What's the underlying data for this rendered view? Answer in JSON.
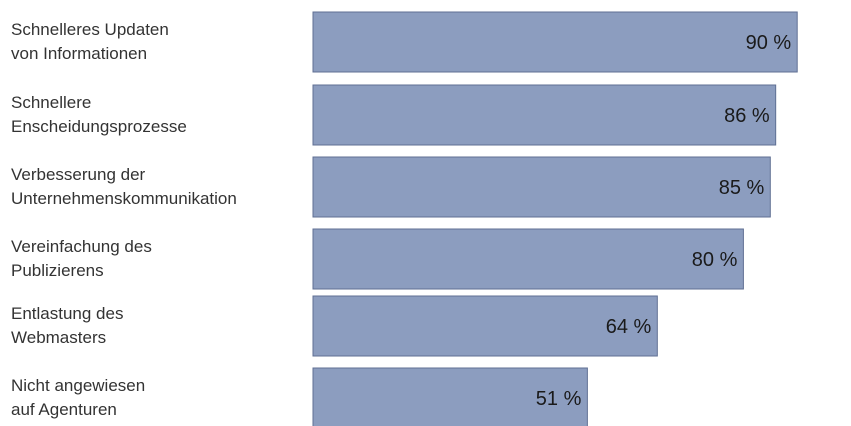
{
  "chart_data": {
    "type": "bar",
    "orientation": "horizontal",
    "categories": [
      [
        "Schnelleres Updaten",
        "von Informationen"
      ],
      [
        "Schnellere",
        "Enscheidungsprozesse"
      ],
      [
        "Verbesserung der",
        "Unternehmenskommunikation"
      ],
      [
        "Vereinfachung des",
        "Publizierens"
      ],
      [
        "Entlastung des",
        "Webmasters"
      ],
      [
        "Nicht angewiesen",
        "auf Agenturen"
      ]
    ],
    "values": [
      90,
      86,
      85,
      80,
      64,
      51
    ],
    "value_labels": [
      "90 %",
      "86 %",
      "85 %",
      "80 %",
      "64 %",
      "51 %"
    ],
    "value_unit": "%",
    "xlim": [
      0,
      100
    ],
    "grid": false,
    "bar_color": "#8c9dbf",
    "bar_border_color": "#5f6f93"
  }
}
